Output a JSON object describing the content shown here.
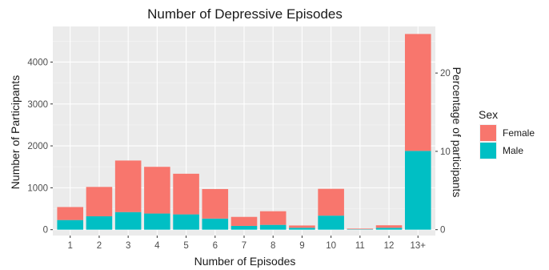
{
  "chart_data": {
    "type": "bar",
    "stacked": true,
    "title": "Number of Depressive Episodes",
    "xlabel": "Number of Episodes",
    "ylabel": "Number of Participants",
    "y2label": "Percentage of participants",
    "categories": [
      "1",
      "2",
      "3",
      "4",
      "5",
      "6",
      "7",
      "8",
      "9",
      "10",
      "11",
      "12",
      "13+"
    ],
    "series": [
      {
        "name": "Male",
        "color": "#00BFC4",
        "values": [
          230,
          320,
          420,
          385,
          365,
          265,
          90,
          115,
          45,
          335,
          10,
          45,
          1880
        ]
      },
      {
        "name": "Female",
        "color": "#F8766D",
        "values": [
          310,
          700,
          1230,
          1115,
          970,
          705,
          215,
          325,
          55,
          640,
          15,
          60,
          2790
        ]
      }
    ],
    "ylim": [
      -140,
      4850
    ],
    "yticks": [
      0,
      1000,
      2000,
      3000,
      4000
    ],
    "y2ticks": [
      0,
      10,
      20
    ],
    "y2_per_participant": 0.00535,
    "grid": true,
    "legend": {
      "title": "Sex",
      "position": "right",
      "entries": [
        "Female",
        "Male"
      ]
    }
  }
}
